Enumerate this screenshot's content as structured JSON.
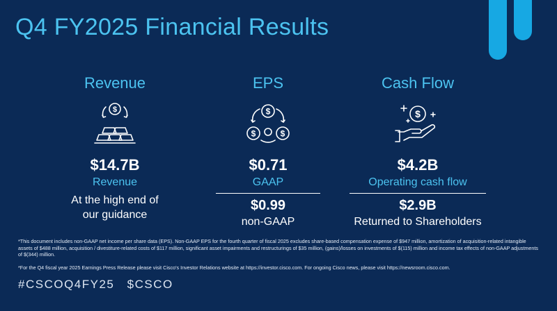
{
  "slide": {
    "title": "Q4 FY2025 Financial Results",
    "accent_color": "#4cc3f0",
    "background_color": "#0b2a56",
    "bar_color": "#17a8e3"
  },
  "revenue": {
    "heading": "Revenue",
    "icon": "gold-bars-dollar-icon",
    "value": "$14.7B",
    "label": "Revenue",
    "note_line1": "At the high end of",
    "note_line2": "our guidance"
  },
  "eps": {
    "heading": "EPS",
    "icon": "coins-cycle-icon",
    "gaap_value": "$0.71",
    "gaap_label": "GAAP",
    "non_gaap_value": "$0.99",
    "non_gaap_label": "non-GAAP"
  },
  "cash_flow": {
    "heading": "Cash Flow",
    "icon": "hand-dollar-icon",
    "value": "$4.2B",
    "label": "Operating cash flow",
    "returned_value": "$2.9B",
    "returned_label": "Returned to Shareholders"
  },
  "footnotes": {
    "note1": "*This document includes non-GAAP net income per share data (EPS). Non-GAAP EPS for the fourth quarter of fiscal 2025 excludes share-based compensation expense of $947 million, amortization of acquisition-related intangible assets of $488 million, acquisition / divestiture-related costs of $117 million, significant asset impairments and restructurings of $35 million, (gains)/losses on investments of $(115) million and income tax effects of non-GAAP adjustments of $(344) million.",
    "note2": "*For the Q4 fiscal year 2025 Earnings Press Release please visit Cisco's Investor Relations website at https://investor.cisco.com. For ongoing Cisco news, please visit https://newsroom.cisco.com."
  },
  "hashtags": {
    "tag1": "#CSCOQ4FY25",
    "tag2": "$CSCO"
  }
}
